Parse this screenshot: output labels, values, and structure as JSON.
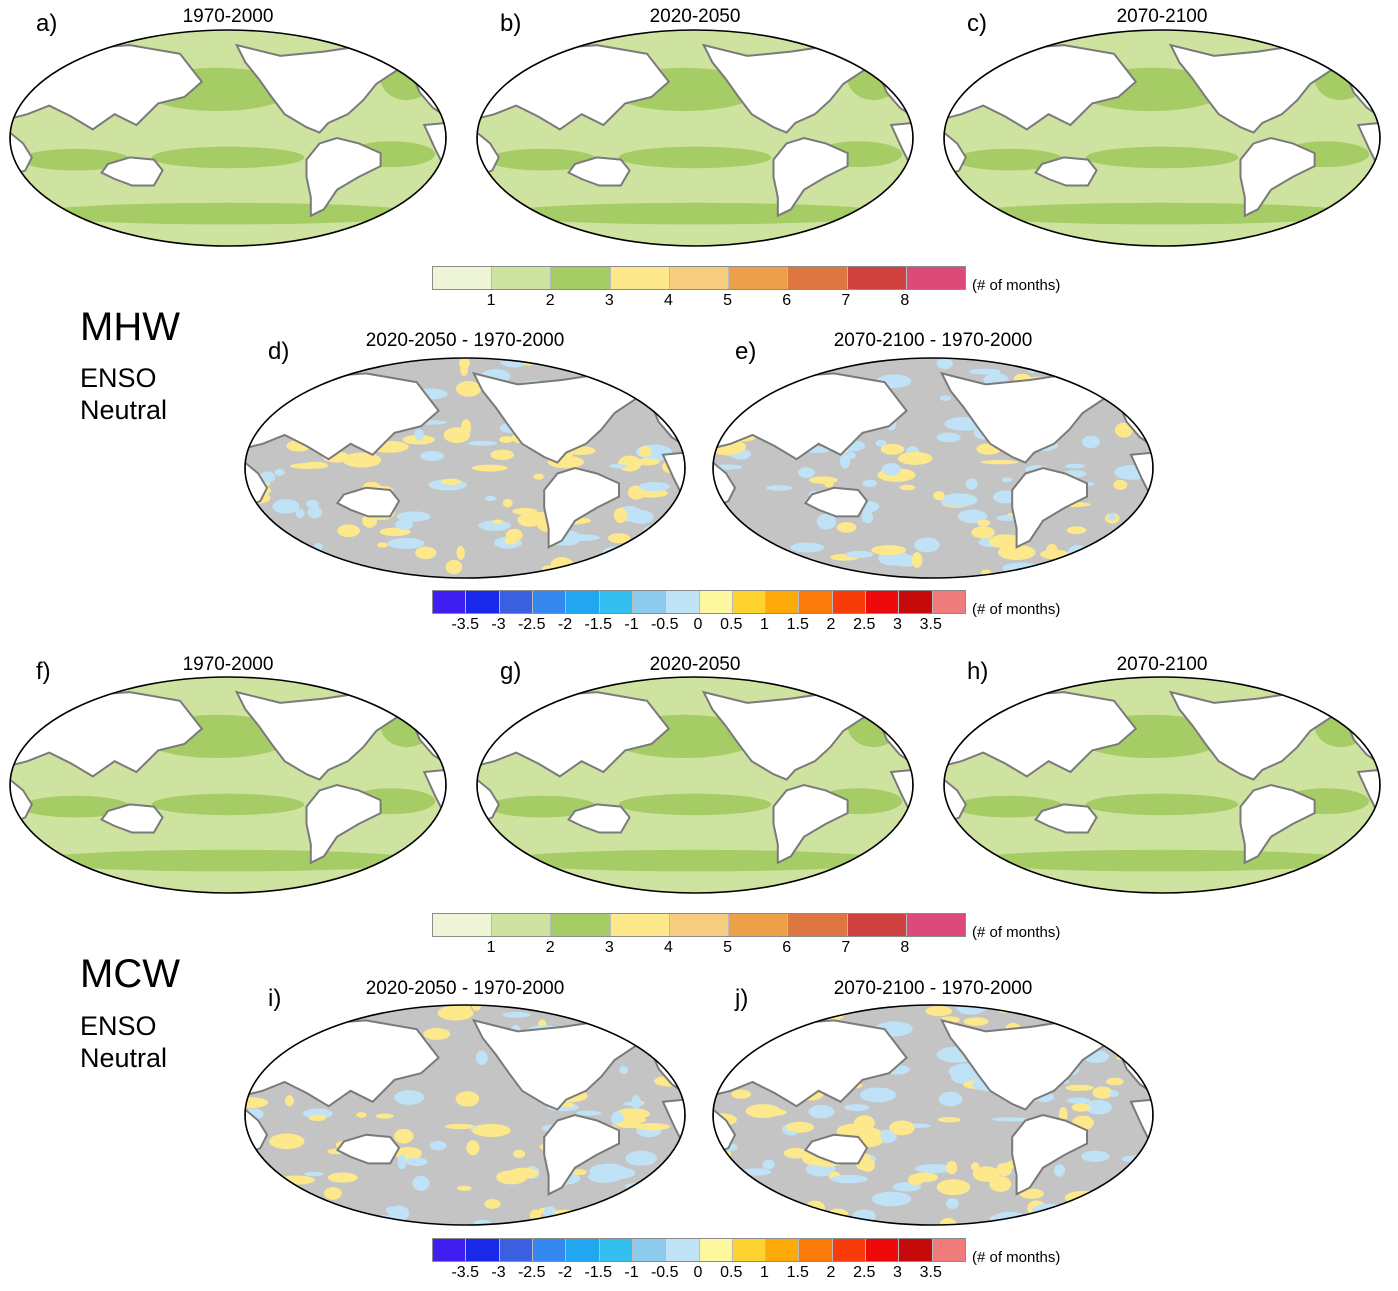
{
  "panels": [
    {
      "id": "a",
      "letter": "a)",
      "title": "1970-2000",
      "kind": "abs"
    },
    {
      "id": "b",
      "letter": "b)",
      "title": "2020-2050",
      "kind": "abs"
    },
    {
      "id": "c",
      "letter": "c)",
      "title": "2070-2100",
      "kind": "abs"
    },
    {
      "id": "d",
      "letter": "d)",
      "title": "2020-2050 - 1970-2000",
      "kind": "diff"
    },
    {
      "id": "e",
      "letter": "e)",
      "title": "2070-2100 - 1970-2000",
      "kind": "diff"
    },
    {
      "id": "f",
      "letter": "f)",
      "title": "1970-2000",
      "kind": "abs"
    },
    {
      "id": "g",
      "letter": "g)",
      "title": "2020-2050",
      "kind": "abs"
    },
    {
      "id": "h",
      "letter": "h)",
      "title": "2070-2100",
      "kind": "abs"
    },
    {
      "id": "i",
      "letter": "i)",
      "title": "2020-2050 - 1970-2000",
      "kind": "diff"
    },
    {
      "id": "j",
      "letter": "j)",
      "title": "2070-2100 - 1970-2000",
      "kind": "diff"
    }
  ],
  "sections": [
    {
      "big": "MHW",
      "line1": "ENSO",
      "line2": "Neutral"
    },
    {
      "big": "MCW",
      "line1": "ENSO",
      "line2": "Neutral"
    }
  ],
  "colorbar_abs": {
    "unit": "(# of months)",
    "colors": [
      "#eef4d6",
      "#cfe3a0",
      "#a6cc66",
      "#fde98c",
      "#f5cc80",
      "#eda04a",
      "#dd7640",
      "#cf4240",
      "#dc4a7a"
    ],
    "ticks": [
      "1",
      "2",
      "3",
      "4",
      "5",
      "6",
      "7",
      "8"
    ]
  },
  "colorbar_diff": {
    "unit": "(# of months)",
    "colors": [
      "#3f1ef2",
      "#1a28ea",
      "#3a60df",
      "#3588ef",
      "#21a6ef",
      "#33bff0",
      "#8ccbee",
      "#bfe2f6",
      "#fdf7a0",
      "#fed330",
      "#fdaa0a",
      "#fb7b0a",
      "#f73c0a",
      "#ee0a0a",
      "#c40a0a",
      "#ef7b7b"
    ],
    "ticks": [
      "-3.5",
      "-3",
      "-2.5",
      "-2",
      "-1.5",
      "-1",
      "-0.5",
      "0",
      "0.5",
      "1",
      "1.5",
      "2",
      "2.5",
      "3",
      "3.5"
    ]
  },
  "map_colors": {
    "ocean_abs_low": "#cfe3a0",
    "ocean_abs_high": "#a6cc66",
    "ocean_diff": "#c4c4c4",
    "diff_pos": "#fde98c",
    "diff_neg": "#bfe2f6",
    "land": "#ffffff",
    "coast": "#7a7a7a"
  }
}
